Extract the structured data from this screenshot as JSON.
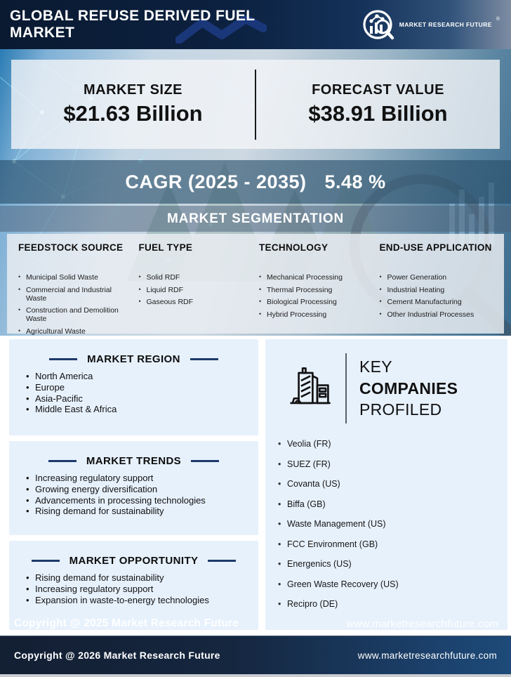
{
  "header": {
    "title": "GLOBAL REFUSE DERIVED FUEL MARKET",
    "brand": "MARKET RESEARCH FUTURE",
    "registered": "®"
  },
  "stats": {
    "market_size_label": "MARKET SIZE",
    "market_size_value": "$21.63 Billion",
    "forecast_label": "FORECAST VALUE",
    "forecast_value": "$38.91 Billion"
  },
  "cagr": {
    "label": "CAGR (2025 - 2035)",
    "value": "5.48 %"
  },
  "segmentation": {
    "heading": "MARKET SEGMENTATION",
    "columns": [
      {
        "title": "FEEDSTOCK SOURCE",
        "items": [
          "Municipal Solid Waste",
          "Commercial and Industrial Waste",
          "Construction and Demolition Waste",
          "Agricultural Waste"
        ]
      },
      {
        "title": "FUEL TYPE",
        "items": [
          "Solid RDF",
          "Liquid RDF",
          "Gaseous RDF"
        ]
      },
      {
        "title": "TECHNOLOGY",
        "items": [
          "Mechanical Processing",
          "Thermal Processing",
          "Biological Processing",
          "Hybrid Processing"
        ]
      },
      {
        "title": "END-USE APPLICATION",
        "items": [
          "Power Generation",
          "Industrial Heating",
          "Cement Manufacturing",
          "Other Industrial Processes"
        ]
      }
    ]
  },
  "region": {
    "title": "MARKET REGION",
    "items": [
      "North America",
      "Europe",
      "Asia-Pacific",
      "Middle East & Africa"
    ]
  },
  "trends": {
    "title": "MARKET TRENDS",
    "items": [
      "Increasing regulatory support",
      "Growing energy diversification",
      "Advancements in processing technologies",
      "Rising demand for sustainability"
    ]
  },
  "opportunity": {
    "title": "MARKET OPPORTUNITY",
    "items": [
      "Rising demand for sustainability",
      "Increasing regulatory support",
      "Expansion in waste-to-energy technologies"
    ]
  },
  "companies": {
    "line1": "KEY",
    "line2": "COMPANIES",
    "line3": "PROFILED",
    "items": [
      "Veolia (FR)",
      "SUEZ (FR)",
      "Covanta (US)",
      "Biffa (GB)",
      "Waste Management (US)",
      "FCC Environment (GB)",
      "Energenics (US)",
      "Green Waste Recovery (US)",
      "Recipro (DE)"
    ]
  },
  "watermark": {
    "copyright": "Copyright @ 2025 Market Research Future",
    "website": "www.marketresearchfuture.com"
  },
  "footer": {
    "copyright": "Copyright @ 2026 Market Research Future",
    "website": "www.marketresearchfuture.com"
  },
  "colors": {
    "header_navy": "#0b1b33",
    "accent_navy": "#1d3a6b",
    "band_blue": "#3e6380",
    "box_blue": "#e7f1fc",
    "footer_dark": "#131f33",
    "footer_light": "#1d4a78"
  }
}
